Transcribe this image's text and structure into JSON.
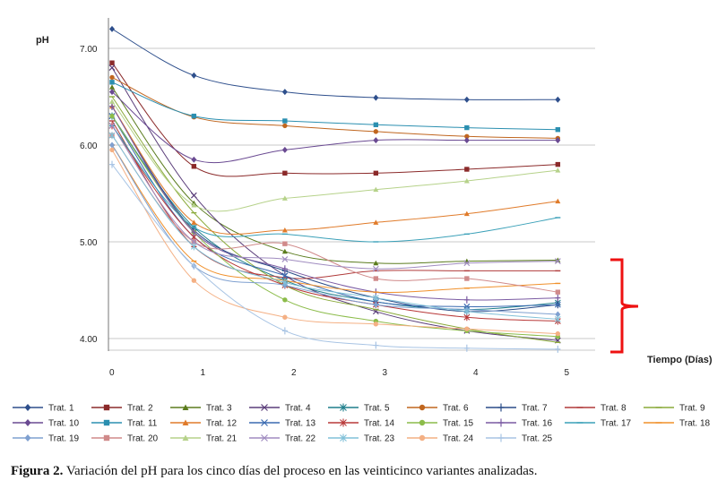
{
  "caption": {
    "label": "Figura 2.",
    "text": "Variación del pH para los cinco días del proceso en las veinticinco variantes analizadas."
  },
  "chart_data": {
    "type": "line",
    "ylabel": "pH",
    "xlabel": "Tiempo (Días)",
    "xlim": [
      0,
      5
    ],
    "ylim": [
      3.9,
      7.3
    ],
    "x_ticks": [
      "0",
      "1",
      "2",
      "3",
      "4",
      "5"
    ],
    "y_ticks": [
      "4.00",
      "5.00",
      "6.00",
      "7.00"
    ],
    "grid": "horizontal",
    "legend_position": "bottom",
    "annotation": "red bracket marking the 3.9–4.9 pH range",
    "x": [
      0,
      0.9,
      1.9,
      2.9,
      3.9,
      4.9
    ],
    "series": [
      {
        "name": "Trat. 1",
        "color": "#2e4f8c",
        "marker": "diamond",
        "values": [
          7.2,
          6.72,
          6.55,
          6.49,
          6.47,
          6.47
        ]
      },
      {
        "name": "Trat. 2",
        "color": "#8b2a2a",
        "marker": "square",
        "values": [
          6.85,
          5.78,
          5.71,
          5.71,
          5.75,
          5.8
        ]
      },
      {
        "name": "Trat. 3",
        "color": "#5b7c1e",
        "marker": "triangle",
        "values": [
          6.6,
          5.4,
          4.9,
          4.78,
          4.8,
          4.81
        ]
      },
      {
        "name": "Trat. 4",
        "color": "#5a3d7a",
        "marker": "x",
        "values": [
          6.8,
          5.48,
          4.65,
          4.28,
          4.08,
          3.98
        ]
      },
      {
        "name": "Trat. 5",
        "color": "#1f7f8c",
        "marker": "star",
        "values": [
          6.3,
          5.15,
          4.6,
          4.38,
          4.3,
          4.37
        ]
      },
      {
        "name": "Trat. 6",
        "color": "#c0661f",
        "marker": "circle",
        "values": [
          6.7,
          6.29,
          6.2,
          6.14,
          6.09,
          6.07
        ]
      },
      {
        "name": "Trat. 7",
        "color": "#2a4c88",
        "marker": "plus",
        "values": [
          6.4,
          5.12,
          4.7,
          4.42,
          4.28,
          4.35
        ]
      },
      {
        "name": "Trat. 8",
        "color": "#b03a3a",
        "marker": "dash",
        "values": [
          6.25,
          4.95,
          4.63,
          4.7,
          4.7,
          4.7
        ]
      },
      {
        "name": "Trat. 9",
        "color": "#8aaa3a",
        "marker": "dash",
        "values": [
          6.5,
          5.3,
          4.55,
          4.3,
          4.1,
          3.96
        ]
      },
      {
        "name": "Trat. 10",
        "color": "#6a4a92",
        "marker": "diamond",
        "values": [
          6.55,
          5.85,
          5.95,
          6.05,
          6.05,
          6.05
        ]
      },
      {
        "name": "Trat. 11",
        "color": "#2b8fb0",
        "marker": "square",
        "values": [
          6.65,
          6.3,
          6.25,
          6.21,
          6.18,
          6.16
        ]
      },
      {
        "name": "Trat. 12",
        "color": "#e07b2a",
        "marker": "triangle",
        "values": [
          6.4,
          5.2,
          5.12,
          5.2,
          5.29,
          5.42
        ]
      },
      {
        "name": "Trat. 13",
        "color": "#3a6ab0",
        "marker": "x",
        "values": [
          6.3,
          5.05,
          4.65,
          4.38,
          4.33,
          4.35
        ]
      },
      {
        "name": "Trat. 14",
        "color": "#b83838",
        "marker": "star",
        "values": [
          6.2,
          5.05,
          4.55,
          4.35,
          4.22,
          4.18
        ]
      },
      {
        "name": "Trat. 15",
        "color": "#8cbc4a",
        "marker": "circle",
        "values": [
          6.3,
          5.1,
          4.4,
          4.18,
          4.08,
          4.02
        ]
      },
      {
        "name": "Trat. 16",
        "color": "#7a5aa2",
        "marker": "plus",
        "values": [
          6.4,
          5.1,
          4.72,
          4.48,
          4.4,
          4.42
        ]
      },
      {
        "name": "Trat. 17",
        "color": "#3aa0b8",
        "marker": "dash",
        "values": [
          6.2,
          5.15,
          5.08,
          5.0,
          5.08,
          5.25
        ]
      },
      {
        "name": "Trat. 18",
        "color": "#f0902a",
        "marker": "dash",
        "values": [
          6.0,
          4.8,
          4.6,
          4.48,
          4.52,
          4.57
        ]
      },
      {
        "name": "Trat. 19",
        "color": "#7fa0d0",
        "marker": "diamond",
        "values": [
          6.0,
          4.75,
          4.55,
          4.35,
          4.3,
          4.25
        ]
      },
      {
        "name": "Trat. 20",
        "color": "#d08a8a",
        "marker": "square",
        "values": [
          6.1,
          5.0,
          4.98,
          4.62,
          4.62,
          4.48
        ]
      },
      {
        "name": "Trat. 21",
        "color": "#b6d28a",
        "marker": "triangle",
        "values": [
          6.45,
          5.38,
          5.45,
          5.54,
          5.63,
          5.74
        ]
      },
      {
        "name": "Trat. 22",
        "color": "#a08cc0",
        "marker": "x",
        "values": [
          6.2,
          5.0,
          4.82,
          4.72,
          4.78,
          4.8
        ]
      },
      {
        "name": "Trat. 23",
        "color": "#80c0d8",
        "marker": "star",
        "values": [
          6.1,
          4.95,
          4.58,
          4.42,
          4.28,
          4.2
        ]
      },
      {
        "name": "Trat. 24",
        "color": "#f4b084",
        "marker": "circle",
        "values": [
          5.95,
          4.6,
          4.22,
          4.15,
          4.1,
          4.05
        ]
      },
      {
        "name": "Trat. 25",
        "color": "#a8c4e4",
        "marker": "plus",
        "values": [
          5.8,
          4.75,
          4.08,
          3.93,
          3.9,
          3.89
        ]
      }
    ]
  }
}
